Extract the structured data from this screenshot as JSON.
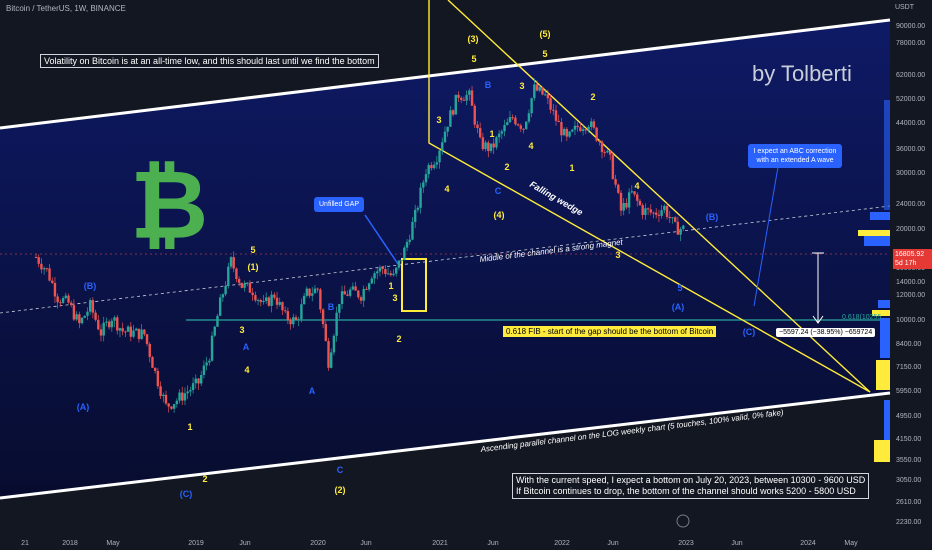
{
  "header": {
    "symbol_line": "Bitcoin / TetherUS, 1W, BINANCE",
    "currency": "USDT"
  },
  "notes": {
    "volatility": "Volatility on Bitcoin is at an all-time low, and this should last until we find the bottom",
    "author": "by Tolberti",
    "gap": "Unfilled GAP",
    "abc": "I expect an ABC correction with an extended A wave",
    "fib": "0.618 FIB - start of the gap should be the bottom of Bitcoin",
    "measure": "−5597.24 (−38.95%) −659724",
    "fib_level": "0.618(10255",
    "middle": "Middle of the channel is a strong magnet",
    "wedge": "Falling wedge",
    "channel": "Ascending parallel channel on the LOG weekly chart (5 touches, 100% valid, 0% fake)",
    "bottom_1": "With the current speed, I expect a bottom on July 20, 2023, between 10300 - 9600 USD",
    "bottom_2": "If Bitcoin continues to drop, the bottom of the channel should works 5200 - 5800 USD"
  },
  "price_tag": {
    "value": "16805.92",
    "countdown": "5d 17h"
  },
  "colors": {
    "up": "#26a69a",
    "down": "#ef5350",
    "channel": "#ffffff",
    "wedge": "#ffeb3b",
    "fib": "#26a69a",
    "btc": "#4caf50",
    "callout": "#2962ff"
  },
  "chart_data": {
    "type": "candlestick",
    "title": "Bitcoin / TetherUS, 1W, BINANCE",
    "y_scale": "log",
    "y_ticks": [
      "90000.00",
      "78000.00",
      "62000.00",
      "52000.00",
      "44000.00",
      "36000.00",
      "30000.00",
      "24000.00",
      "20000.00",
      "16000.00",
      "14000.00",
      "12000.00",
      "10000.00",
      "8400.00",
      "7150.00",
      "5950.00",
      "4950.00",
      "4150.00",
      "3550.00",
      "3050.00",
      "2610.00",
      "2230.00"
    ],
    "x_ticks": [
      "21",
      "2018",
      "May",
      "2019",
      "Jun",
      "2020",
      "Jun",
      "2021",
      "Jun",
      "2022",
      "Jun",
      "2023",
      "Jun",
      "2024",
      "May"
    ],
    "series": [
      {
        "values": [
          [
            "2017-12",
            13000
          ],
          [
            "2018-01",
            11500
          ],
          [
            "2018-02",
            9000
          ],
          [
            "2018-03",
            8500
          ],
          [
            "2018-04",
            7000
          ],
          [
            "2018-05",
            8300
          ],
          [
            "2018-06",
            6500
          ],
          [
            "2018-07",
            7500
          ],
          [
            "2018-08",
            6600
          ],
          [
            "2018-09",
            6500
          ],
          [
            "2018-10",
            6400
          ],
          [
            "2018-11",
            4500
          ],
          [
            "2018-12",
            3300
          ],
          [
            "2019-01",
            3500
          ],
          [
            "2019-02",
            3800
          ],
          [
            "2019-03",
            4100
          ],
          [
            "2019-04",
            5300
          ],
          [
            "2019-05",
            8500
          ],
          [
            "2019-06",
            12500
          ],
          [
            "2019-07",
            10000
          ],
          [
            "2019-08",
            9600
          ],
          [
            "2019-09",
            8300
          ],
          [
            "2019-10",
            9200
          ],
          [
            "2019-11",
            7500
          ],
          [
            "2019-12",
            7200
          ],
          [
            "2020-01",
            9300
          ],
          [
            "2020-02",
            9700
          ],
          [
            "2020-03",
            5000
          ],
          [
            "2020-04",
            8800
          ],
          [
            "2020-05",
            9500
          ],
          [
            "2020-06",
            9200
          ],
          [
            "2020-07",
            11200
          ],
          [
            "2020-08",
            11700
          ],
          [
            "2020-09",
            10800
          ],
          [
            "2020-10",
            13800
          ],
          [
            "2020-11",
            19000
          ],
          [
            "2020-12",
            29000
          ],
          [
            "2021-01",
            33000
          ],
          [
            "2021-02",
            45000
          ],
          [
            "2021-03",
            58000
          ],
          [
            "2021-04",
            57000
          ],
          [
            "2021-05",
            37000
          ],
          [
            "2021-06",
            35000
          ],
          [
            "2021-07",
            41000
          ],
          [
            "2021-08",
            47000
          ],
          [
            "2021-09",
            43000
          ],
          [
            "2021-10",
            61000
          ],
          [
            "2021-11",
            57000
          ],
          [
            "2021-12",
            46000
          ],
          [
            "2022-01",
            38000
          ],
          [
            "2022-02",
            43000
          ],
          [
            "2022-03",
            45000
          ],
          [
            "2022-04",
            38000
          ],
          [
            "2022-05",
            31500
          ],
          [
            "2022-06",
            19900
          ],
          [
            "2022-07",
            23300
          ],
          [
            "2022-08",
            20000
          ],
          [
            "2022-09",
            19400
          ],
          [
            "2022-10",
            20500
          ],
          [
            "2022-11",
            17000
          ],
          [
            "2022-12",
            16800
          ]
        ]
      }
    ],
    "wave_labels_yellow": [
      "1",
      "2",
      "3",
      "4",
      "5",
      "(1)",
      "(2)",
      "3",
      "4",
      "5",
      "1",
      "2",
      "3",
      "4",
      "5",
      "(3)",
      "(4)",
      "(5)",
      "1",
      "2",
      "3",
      "4",
      "5",
      "1",
      "2",
      "3",
      "4"
    ],
    "wave_labels_blue": [
      "(A)",
      "(B)",
      "(C)",
      "A",
      "B",
      "C",
      "A",
      "B",
      "C",
      "(A)",
      "(B)",
      "(C)",
      "5"
    ],
    "levels": {
      "fib_0618": 10255,
      "current": 16805.92
    }
  }
}
